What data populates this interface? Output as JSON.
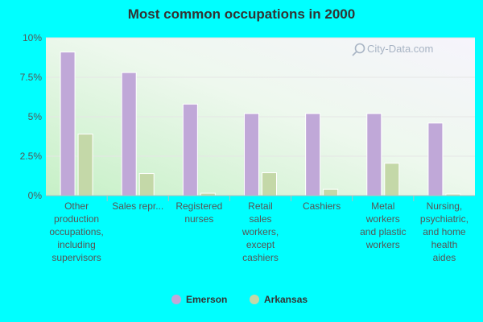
{
  "chart_data": {
    "type": "bar",
    "title": "Most common occupations in 2000",
    "xlabel": "",
    "ylabel": "",
    "ylim": [
      0,
      10
    ],
    "y_ticks": [
      "0%",
      "2.5%",
      "5%",
      "7.5%",
      "10%"
    ],
    "y_tick_values": [
      0,
      2.5,
      5,
      7.5,
      10
    ],
    "categories": [
      [
        "Other",
        "production",
        "occupations,",
        "including",
        "supervisors"
      ],
      [
        "Sales repr..."
      ],
      [
        "Registered",
        "nurses"
      ],
      [
        "Retail",
        "sales",
        "workers,",
        "except",
        "cashiers"
      ],
      [
        "Cashiers"
      ],
      [
        "Metal",
        "workers",
        "and plastic",
        "workers"
      ],
      [
        "Nursing,",
        "psychiatric,",
        "and home",
        "health",
        "aides"
      ]
    ],
    "series": [
      {
        "name": "Emerson",
        "color": "#c0a8d8",
        "values": [
          9.1,
          7.8,
          5.8,
          5.2,
          5.2,
          5.2,
          4.6
        ]
      },
      {
        "name": "Arkansas",
        "color": "#c4d8a8",
        "values": [
          3.9,
          1.4,
          0.15,
          1.45,
          0.4,
          2.05,
          0.1
        ]
      }
    ],
    "grid": true,
    "legend_position": "bottom-center"
  },
  "watermark": "City-Data.com"
}
